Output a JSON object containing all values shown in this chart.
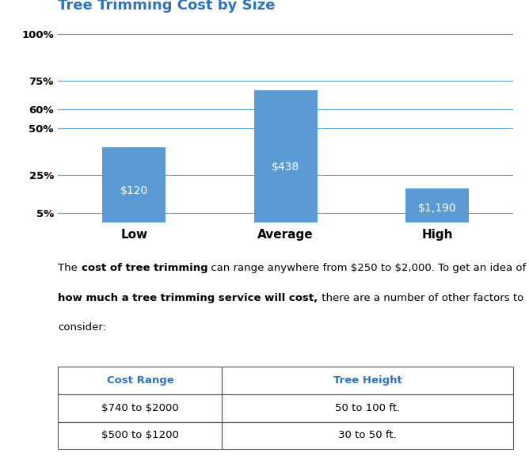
{
  "title": "Tree Trimming Cost by Size",
  "title_color": "#2E75B6",
  "categories": [
    "Low",
    "Average",
    "High"
  ],
  "values": [
    40,
    70,
    18
  ],
  "bar_labels": [
    "$120",
    "$438",
    "$1,190"
  ],
  "bar_color": "#5B9BD5",
  "yticks": [
    5,
    25,
    50,
    60,
    75,
    100
  ],
  "ytick_labels": [
    "5%",
    "25%",
    "50%",
    "60%",
    "75%",
    "100%"
  ],
  "ylim": [
    0,
    108
  ],
  "grid_color": "#5B9BD5",
  "background_color": "#FFFFFF",
  "bold1": "cost of tree trimming",
  "normal1": " can range anywhere from $250 to $2,000. To get an idea of",
  "bold2": "how much a tree trimming service will cost,",
  "normal2": " there are a number of other factors to",
  "normal3": "consider:",
  "table_headers": [
    "Cost Range",
    "Tree Height"
  ],
  "table_rows": [
    [
      "$740 to $2000",
      "50 to 100 ft."
    ],
    [
      "$500 to $1200",
      "30 to 50 ft."
    ]
  ],
  "table_header_color": "#2E75B6",
  "table_border_color": "#555555",
  "fontsize_bar_label": 10,
  "fontsize_tick": 9.5,
  "fontsize_xcat": 11,
  "fontsize_title": 13,
  "fontsize_text": 9.5,
  "fontsize_table": 9.5
}
